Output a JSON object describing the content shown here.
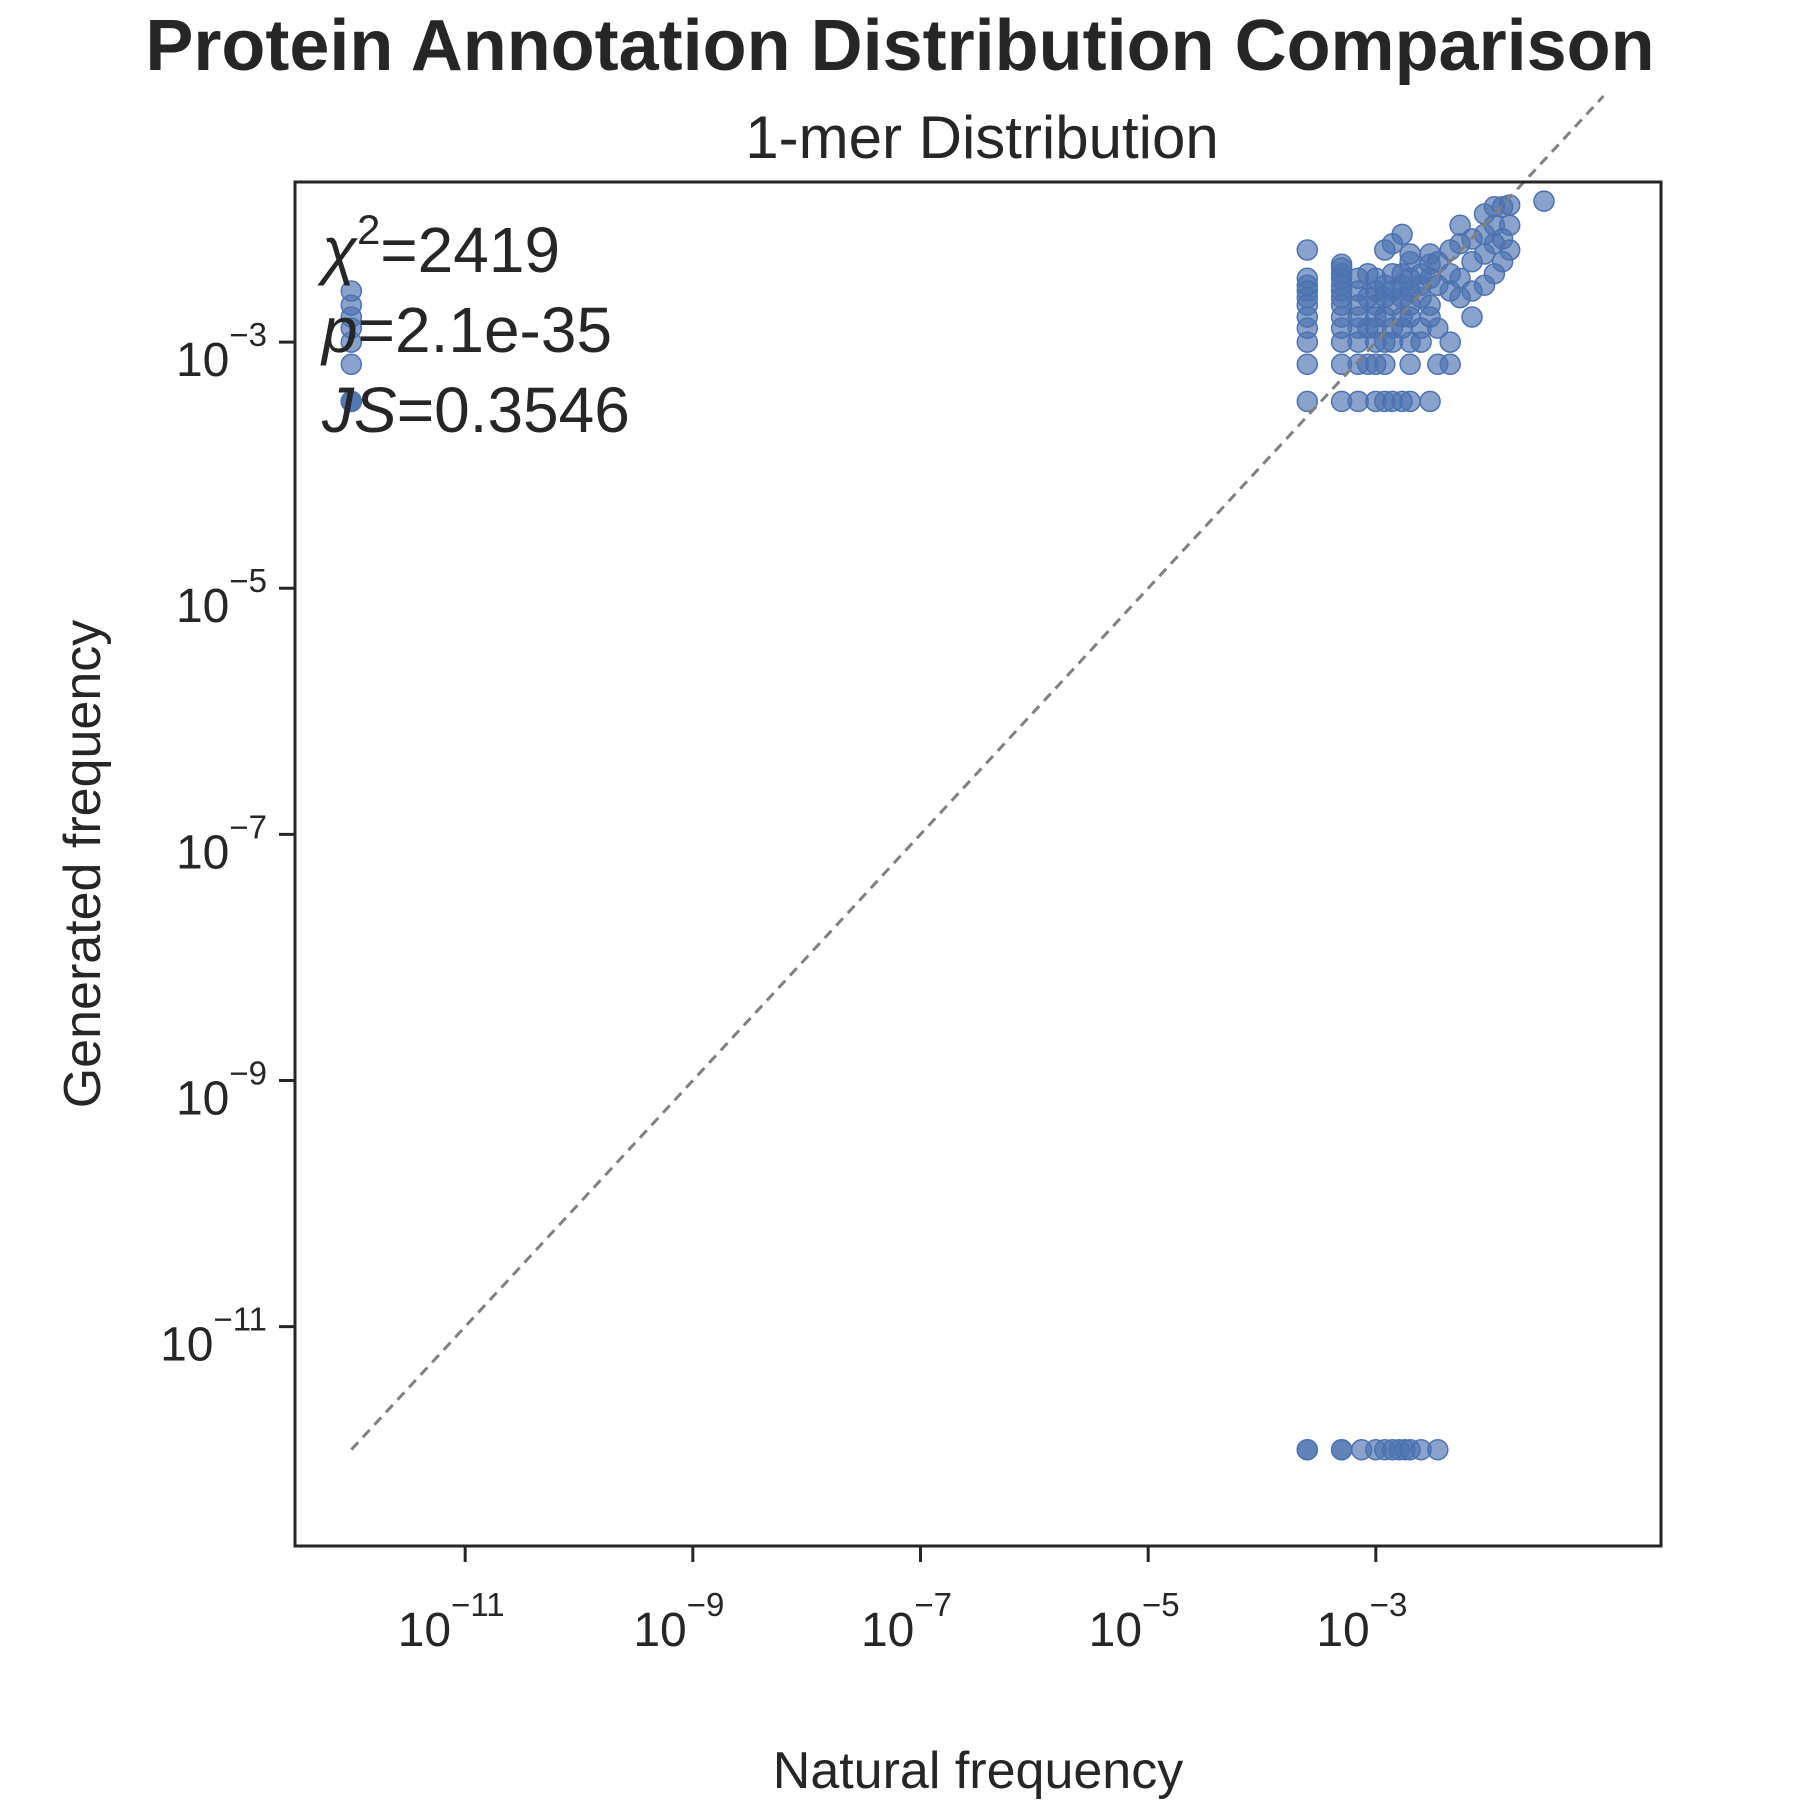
{
  "figure": {
    "suptitle": "Protein Annotation Distribution Comparison"
  },
  "chart_data": {
    "type": "scatter",
    "title": "1-mer Distribution",
    "xlabel": "Natural frequency",
    "ylabel": "Generated frequency",
    "xscale": "log",
    "yscale": "log",
    "xlim": [
      3.2e-13,
      0.32
    ],
    "ylim": [
      1.65e-13,
      0.02
    ],
    "xticks": [
      {
        "value": 1e-11,
        "base": "10",
        "exp": "−11"
      },
      {
        "value": 1e-09,
        "base": "10",
        "exp": "−9"
      },
      {
        "value": 1e-07,
        "base": "10",
        "exp": "−7"
      },
      {
        "value": 1e-05,
        "base": "10",
        "exp": "−5"
      },
      {
        "value": 0.001,
        "base": "10",
        "exp": "−3"
      }
    ],
    "yticks": [
      {
        "value": 1e-11,
        "base": "10",
        "exp": "−11"
      },
      {
        "value": 1e-09,
        "base": "10",
        "exp": "−9"
      },
      {
        "value": 1e-07,
        "base": "10",
        "exp": "−7"
      },
      {
        "value": 1e-05,
        "base": "10",
        "exp": "−5"
      },
      {
        "value": 0.001,
        "base": "10",
        "exp": "−3"
      }
    ],
    "grid": false,
    "reference_line": {
      "style": "dashed",
      "color": "#808080",
      "from": [
        1e-12,
        1e-12
      ],
      "to": [
        0.1,
        0.1
      ]
    },
    "marker_color": "#4c72b0",
    "marker_alpha": 0.65,
    "annotations": {
      "chi2_symbol": "χ",
      "chi2_exp": "2",
      "chi2_value": "=2419",
      "p_symbol": "p",
      "p_value": "=2.1e-35",
      "js_symbol": "JS",
      "js_value": "=0.3546"
    },
    "series": [
      {
        "points": [
          [
            1e-12,
            0.00033
          ],
          [
            1e-12,
            0.00033
          ],
          [
            1e-12,
            0.00033
          ],
          [
            1e-12,
            0.00066
          ],
          [
            1e-12,
            0.001
          ],
          [
            1e-12,
            0.0013
          ],
          [
            1e-12,
            0.0016
          ],
          [
            1e-12,
            0.002
          ],
          [
            1e-12,
            0.0026
          ],
          [
            0.00025,
            1e-12
          ],
          [
            0.00025,
            1e-12
          ],
          [
            0.0005,
            1e-12
          ],
          [
            0.0005,
            1e-12
          ],
          [
            0.00075,
            1e-12
          ],
          [
            0.001,
            1e-12
          ],
          [
            0.0012,
            1e-12
          ],
          [
            0.0014,
            1e-12
          ],
          [
            0.0016,
            1e-12
          ],
          [
            0.0018,
            1e-12
          ],
          [
            0.002,
            1e-12
          ],
          [
            0.0025,
            1e-12
          ],
          [
            0.0035,
            1e-12
          ],
          [
            0.00025,
            0.00033
          ],
          [
            0.00025,
            0.00066
          ],
          [
            0.00025,
            0.001
          ],
          [
            0.00025,
            0.0013
          ],
          [
            0.00025,
            0.0016
          ],
          [
            0.00025,
            0.002
          ],
          [
            0.00025,
            0.0023
          ],
          [
            0.00025,
            0.0026
          ],
          [
            0.00025,
            0.0029
          ],
          [
            0.00025,
            0.0033
          ],
          [
            0.00025,
            0.0056
          ],
          [
            0.0005,
            0.00033
          ],
          [
            0.0005,
            0.00066
          ],
          [
            0.0005,
            0.001
          ],
          [
            0.0005,
            0.0013
          ],
          [
            0.0005,
            0.0016
          ],
          [
            0.0005,
            0.002
          ],
          [
            0.0005,
            0.0023
          ],
          [
            0.0005,
            0.0026
          ],
          [
            0.0005,
            0.0029
          ],
          [
            0.0005,
            0.0033
          ],
          [
            0.0005,
            0.0036
          ],
          [
            0.0005,
            0.004
          ],
          [
            0.0005,
            0.0043
          ],
          [
            0.0007,
            0.00033
          ],
          [
            0.0007,
            0.00066
          ],
          [
            0.0007,
            0.001
          ],
          [
            0.0007,
            0.0013
          ],
          [
            0.0007,
            0.0016
          ],
          [
            0.0007,
            0.002
          ],
          [
            0.0007,
            0.0026
          ],
          [
            0.0007,
            0.0033
          ],
          [
            0.00085,
            0.00066
          ],
          [
            0.00085,
            0.0013
          ],
          [
            0.00085,
            0.0023
          ],
          [
            0.00085,
            0.0036
          ],
          [
            0.001,
            0.00033
          ],
          [
            0.001,
            0.00066
          ],
          [
            0.001,
            0.001
          ],
          [
            0.001,
            0.0013
          ],
          [
            0.001,
            0.0016
          ],
          [
            0.001,
            0.002
          ],
          [
            0.001,
            0.0026
          ],
          [
            0.001,
            0.0033
          ],
          [
            0.0012,
            0.00033
          ],
          [
            0.0012,
            0.00066
          ],
          [
            0.0012,
            0.001
          ],
          [
            0.0012,
            0.0016
          ],
          [
            0.0012,
            0.0023
          ],
          [
            0.0012,
            0.0029
          ],
          [
            0.0012,
            0.0056
          ],
          [
            0.0014,
            0.00033
          ],
          [
            0.0014,
            0.001
          ],
          [
            0.0014,
            0.0013
          ],
          [
            0.0014,
            0.002
          ],
          [
            0.0014,
            0.0026
          ],
          [
            0.0014,
            0.0036
          ],
          [
            0.0014,
            0.0063
          ],
          [
            0.0017,
            0.00033
          ],
          [
            0.0017,
            0.0013
          ],
          [
            0.0017,
            0.0016
          ],
          [
            0.0017,
            0.0023
          ],
          [
            0.0017,
            0.0029
          ],
          [
            0.0017,
            0.0036
          ],
          [
            0.0017,
            0.0075
          ],
          [
            0.002,
            0.00033
          ],
          [
            0.002,
            0.00066
          ],
          [
            0.002,
            0.001
          ],
          [
            0.002,
            0.0016
          ],
          [
            0.002,
            0.002
          ],
          [
            0.002,
            0.0026
          ],
          [
            0.002,
            0.0033
          ],
          [
            0.002,
            0.0045
          ],
          [
            0.002,
            0.0052
          ],
          [
            0.0025,
            0.001
          ],
          [
            0.0025,
            0.0013
          ],
          [
            0.0025,
            0.0023
          ],
          [
            0.0025,
            0.0029
          ],
          [
            0.0025,
            0.0036
          ],
          [
            0.003,
            0.00033
          ],
          [
            0.003,
            0.0016
          ],
          [
            0.003,
            0.002
          ],
          [
            0.003,
            0.0033
          ],
          [
            0.003,
            0.0043
          ],
          [
            0.003,
            0.0052
          ],
          [
            0.0035,
            0.00066
          ],
          [
            0.0035,
            0.0013
          ],
          [
            0.0035,
            0.0029
          ],
          [
            0.0035,
            0.0045
          ],
          [
            0.0045,
            0.00066
          ],
          [
            0.0045,
            0.001
          ],
          [
            0.0045,
            0.0026
          ],
          [
            0.0045,
            0.0036
          ],
          [
            0.0045,
            0.0056
          ],
          [
            0.0055,
            0.0023
          ],
          [
            0.0055,
            0.0033
          ],
          [
            0.0055,
            0.0063
          ],
          [
            0.0055,
            0.0089
          ],
          [
            0.007,
            0.0016
          ],
          [
            0.007,
            0.0026
          ],
          [
            0.007,
            0.0045
          ],
          [
            0.007,
            0.0069
          ],
          [
            0.009,
            0.0029
          ],
          [
            0.009,
            0.0052
          ],
          [
            0.009,
            0.0075
          ],
          [
            0.009,
            0.011
          ],
          [
            0.011,
            0.0036
          ],
          [
            0.011,
            0.0063
          ],
          [
            0.011,
            0.0089
          ],
          [
            0.011,
            0.0126
          ],
          [
            0.013,
            0.0045
          ],
          [
            0.013,
            0.0069
          ],
          [
            0.013,
            0.0126
          ],
          [
            0.015,
            0.0056
          ],
          [
            0.015,
            0.0089
          ],
          [
            0.015,
            0.013
          ],
          [
            0.03,
            0.014
          ]
        ]
      }
    ]
  }
}
